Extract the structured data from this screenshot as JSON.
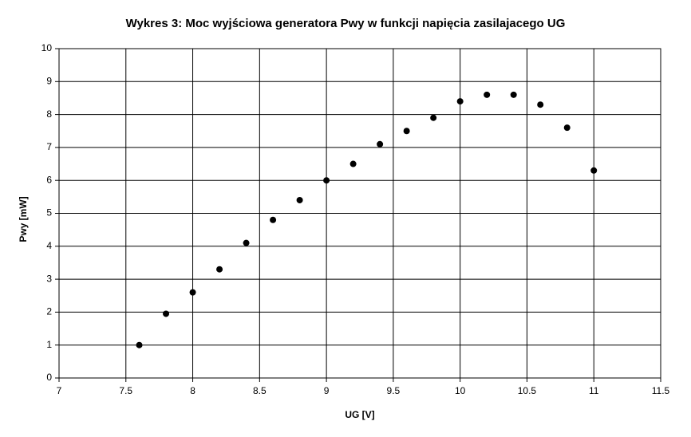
{
  "chart_data": {
    "type": "scatter",
    "title": "Wykres 3: Moc wyjściowa generatora Pwy w funkcji napięcia zasilajacego UG",
    "x_label": "UG [V]",
    "y_label": "Pwy [mW]",
    "series": [
      {
        "color": "#000000",
        "x": [
          7.6,
          7.8,
          8,
          8.2,
          8.4,
          8.6,
          8.8,
          9,
          9.2,
          9.4,
          9.6,
          9.8,
          10,
          10.2,
          10.4,
          10.6,
          10.8,
          11
        ],
        "values": [
          1,
          1.95,
          2.6,
          3.3,
          4.1,
          4.8,
          5.4,
          6,
          6.5,
          7.1,
          7.5,
          7.9,
          8.4,
          8.6,
          8.6,
          8.3,
          7.6,
          6.3
        ]
      }
    ],
    "xlim": [
      7,
      11.5
    ],
    "xticks": [
      7,
      7.5,
      8,
      8.5,
      9,
      9.5,
      10,
      10.5,
      11,
      11.5
    ],
    "ylim": [
      0,
      10
    ],
    "yticks": [
      0,
      1,
      2,
      3,
      4,
      5,
      6,
      7,
      8,
      9,
      10
    ],
    "grid": true
  }
}
